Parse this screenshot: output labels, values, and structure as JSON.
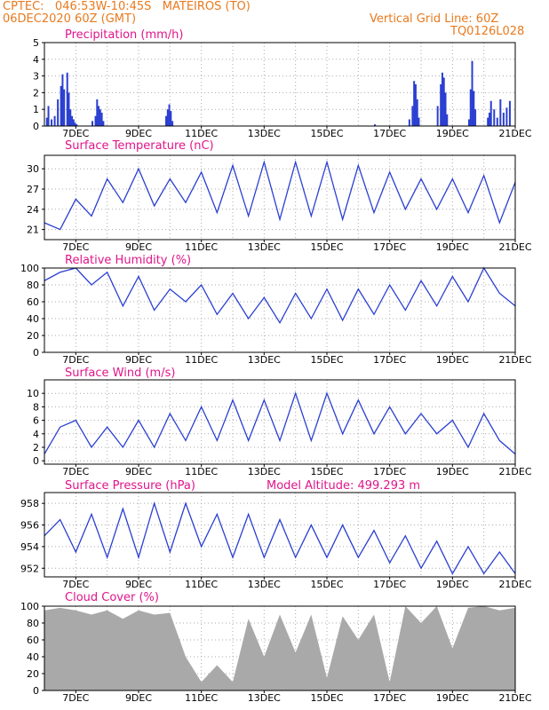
{
  "header": {
    "line1": "CPTEC:   046:53W-10:45S   MATEIROS (TO)",
    "line2": "06DEC2020 60Z (GMT)",
    "grid_note": "Vertical Grid Line: 60Z",
    "code": "TQ0126L028"
  },
  "colors": {
    "header": "#e87a1e",
    "title": "#e0158a",
    "series": "#2b3fd1",
    "cloud": "#a9a9a9"
  },
  "x_ticks": [
    "7DEC",
    "9DEC",
    "11DEC",
    "13DEC",
    "15DEC",
    "17DEC",
    "19DEC",
    "21DEC"
  ],
  "chart_data": [
    {
      "type": "bar",
      "title": "Precipitation (mm/h)",
      "ylim": [
        0,
        5
      ],
      "yticks": [
        0,
        1,
        2,
        3,
        4,
        5
      ],
      "xlabel": "",
      "ylabel": "",
      "x_domain": [
        "6DEC",
        "21DEC"
      ],
      "series": [
        {
          "x_days": [
            0.05,
            0.1,
            0.2,
            0.3,
            0.4,
            0.5,
            0.55,
            0.6,
            0.7,
            0.75,
            0.8,
            0.85,
            0.9,
            0.95,
            1.0,
            1.5,
            1.6,
            1.65,
            1.7,
            1.75,
            1.8,
            1.85,
            3.85,
            3.9,
            3.95,
            4.0,
            4.05,
            10.5,
            11.6,
            11.7,
            11.75,
            11.8,
            11.85,
            11.9,
            12.5,
            12.6,
            12.65,
            12.7,
            12.75,
            12.8,
            13.5,
            13.55,
            13.6,
            13.65,
            13.7,
            14.1,
            14.15,
            14.2,
            14.3,
            14.4,
            14.5,
            14.6,
            14.7,
            14.8
          ],
          "values": [
            0.5,
            1.2,
            0.4,
            0.6,
            1.6,
            2.4,
            3.1,
            2.2,
            3.2,
            2.0,
            1.0,
            0.6,
            0.4,
            0.2,
            0.1,
            0.3,
            0.6,
            1.6,
            1.2,
            1.0,
            0.8,
            0.3,
            0.6,
            1.0,
            1.3,
            0.9,
            0.3,
            0.1,
            0.4,
            1.2,
            2.7,
            2.5,
            1.6,
            0.5,
            1.2,
            2.5,
            3.2,
            2.9,
            2.0,
            0.7,
            0.4,
            2.2,
            3.9,
            2.1,
            1.0,
            0.5,
            0.8,
            1.5,
            1.0,
            0.5,
            1.6,
            0.8,
            1.1,
            1.5
          ]
        }
      ]
    },
    {
      "type": "line",
      "title": "Surface Temperature (nC)",
      "ylim": [
        19.5,
        32
      ],
      "yticks": [
        21,
        24,
        27,
        30
      ],
      "xlabel": "",
      "ylabel": "",
      "series": [
        {
          "x_days": [
            0,
            0.5,
            1,
            1.5,
            2,
            2.5,
            3,
            3.5,
            4,
            4.5,
            5,
            5.5,
            6,
            6.5,
            7,
            7.5,
            8,
            8.5,
            9,
            9.5,
            10,
            10.5,
            11,
            11.5,
            12,
            12.5,
            13,
            13.5,
            14,
            14.5,
            15
          ],
          "values": [
            22,
            21,
            25.5,
            23,
            28.5,
            25,
            30,
            24.5,
            28.5,
            25,
            29.5,
            23.5,
            30.5,
            23,
            31,
            22.5,
            31,
            23,
            31,
            22.5,
            30.5,
            23.5,
            29.5,
            24,
            28.5,
            24,
            28.5,
            23.5,
            29,
            22,
            28
          ]
        }
      ]
    },
    {
      "type": "line",
      "title": "Relative Humidity (%)",
      "ylim": [
        0,
        100
      ],
      "yticks": [
        0,
        20,
        40,
        60,
        80,
        100
      ],
      "xlabel": "",
      "ylabel": "",
      "series": [
        {
          "x_days": [
            0,
            0.5,
            1,
            1.5,
            2,
            2.5,
            3,
            3.5,
            4,
            4.5,
            5,
            5.5,
            6,
            6.5,
            7,
            7.5,
            8,
            8.5,
            9,
            9.5,
            10,
            10.5,
            11,
            11.5,
            12,
            12.5,
            13,
            13.5,
            14,
            14.5,
            15
          ],
          "values": [
            85,
            95,
            100,
            80,
            95,
            55,
            90,
            50,
            75,
            60,
            80,
            45,
            70,
            40,
            65,
            35,
            70,
            40,
            75,
            38,
            75,
            45,
            80,
            50,
            85,
            55,
            90,
            60,
            100,
            70,
            55
          ]
        }
      ]
    },
    {
      "type": "line",
      "title": "Surface Wind (m/s)",
      "ylim": [
        -0.5,
        12
      ],
      "yticks": [
        0,
        2,
        4,
        6,
        8,
        10
      ],
      "xlabel": "",
      "ylabel": "",
      "series": [
        {
          "x_days": [
            0,
            0.5,
            1,
            1.5,
            2,
            2.5,
            3,
            3.5,
            4,
            4.5,
            5,
            5.5,
            6,
            6.5,
            7,
            7.5,
            8,
            8.5,
            9,
            9.5,
            10,
            10.5,
            11,
            11.5,
            12,
            12.5,
            13,
            13.5,
            14,
            14.5,
            15
          ],
          "values": [
            1,
            5,
            6,
            2,
            5,
            2,
            6,
            2,
            7,
            3,
            8,
            3,
            9,
            3,
            9,
            3,
            10,
            3,
            10,
            4,
            9,
            4,
            8,
            4,
            7,
            4,
            6,
            2,
            7,
            3,
            1
          ]
        }
      ]
    },
    {
      "type": "line",
      "title": "Surface Pressure (hPa)",
      "annotation": "Model Altitude: 499.293 m",
      "ylim": [
        951.2,
        959
      ],
      "yticks": [
        952,
        954,
        956,
        958
      ],
      "xlabel": "",
      "ylabel": "",
      "series": [
        {
          "x_days": [
            0,
            0.5,
            1,
            1.5,
            2,
            2.5,
            3,
            3.5,
            4,
            4.5,
            5,
            5.5,
            6,
            6.5,
            7,
            7.5,
            8,
            8.5,
            9,
            9.5,
            10,
            10.5,
            11,
            11.5,
            12,
            12.5,
            13,
            13.5,
            14,
            14.5,
            15
          ],
          "values": [
            955,
            956.5,
            953.5,
            957,
            953,
            957.5,
            953,
            958,
            953.5,
            958,
            954,
            957,
            953,
            957,
            953,
            956.5,
            953,
            956,
            953,
            956,
            953,
            955.5,
            952.5,
            955,
            952,
            954.5,
            951.5,
            954,
            951.5,
            953.5,
            951.5
          ]
        }
      ]
    },
    {
      "type": "area",
      "title": "Cloud Cover (%)",
      "ylim": [
        0,
        100
      ],
      "yticks": [
        0,
        20,
        40,
        60,
        80,
        100
      ],
      "xlabel": "",
      "ylabel": "",
      "series": [
        {
          "x_days": [
            0,
            0.5,
            1,
            1.5,
            2,
            2.5,
            3,
            3.5,
            4,
            4.5,
            5,
            5.5,
            6,
            6.5,
            7,
            7.5,
            8,
            8.5,
            9,
            9.5,
            10,
            10.5,
            11,
            11.5,
            12,
            12.5,
            13,
            13.5,
            14,
            14.5,
            15
          ],
          "values": [
            95,
            98,
            95,
            90,
            95,
            85,
            95,
            90,
            92,
            40,
            10,
            30,
            10,
            85,
            40,
            90,
            45,
            90,
            15,
            88,
            60,
            90,
            10,
            100,
            80,
            100,
            50,
            98,
            100,
            95,
            98
          ]
        }
      ]
    }
  ]
}
